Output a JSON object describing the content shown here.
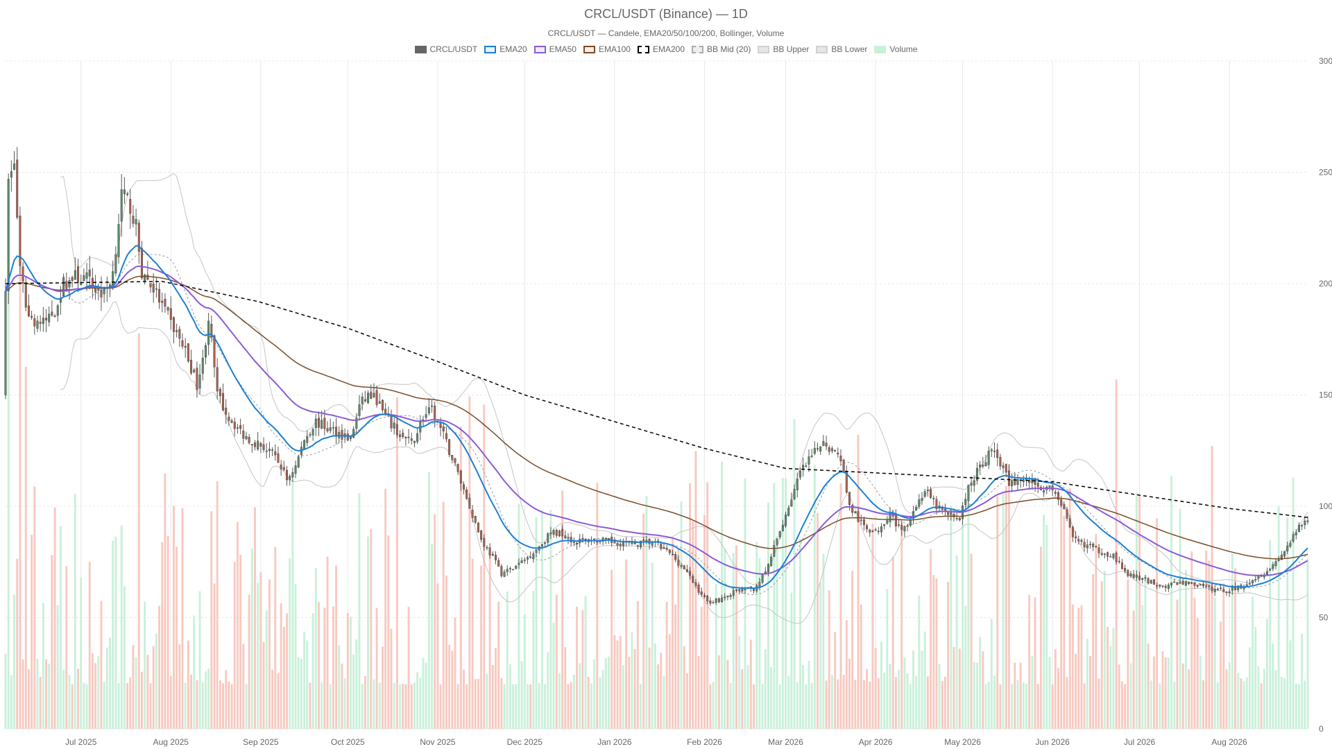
{
  "title": "CRCL/USDT (Binance) — 1D",
  "subtitle": "CRCL/USDT — Candele, EMA20/50/100/200, Bollinger, Volume",
  "legend": [
    {
      "label": "CRCL/USDT",
      "fill": "#666666",
      "stroke": "#666666",
      "dash": false
    },
    {
      "label": "EMA20",
      "fill": "#e6f2fc",
      "stroke": "#1a7fd4",
      "dash": false
    },
    {
      "label": "EMA50",
      "fill": "#f0ebfa",
      "stroke": "#8a5ad8",
      "dash": false
    },
    {
      "label": "EMA100",
      "fill": "#f5ede6",
      "stroke": "#7a4a26",
      "dash": false
    },
    {
      "label": "EMA200",
      "fill": "#ffffff",
      "stroke": "#000000",
      "dash": true
    },
    {
      "label": "BB Mid (20)",
      "fill": "#eeeeee",
      "stroke": "#aaaaaa",
      "dash": true
    },
    {
      "label": "BB Upper",
      "fill": "#e6e6e6",
      "stroke": "#d0d0d0",
      "dash": false
    },
    {
      "label": "BB Lower",
      "fill": "#e6e6e6",
      "stroke": "#d0d0d0",
      "dash": false
    },
    {
      "label": "Volume",
      "fill": "#c9f0da",
      "stroke": "#c9f0da",
      "dash": false
    }
  ],
  "colors": {
    "up": "#5b8c6a",
    "down": "#b0604c",
    "up_volume": "#c9f0da",
    "down_volume": "#f7c9c0",
    "ema20": "#1a7fd4",
    "ema50": "#8a5ad8",
    "ema100": "#7a4a26",
    "ema200": "#000000",
    "bb_mid": "#999999",
    "bb_band": "#c4c4c4",
    "grid": "#e8e8e8"
  },
  "chart_data": {
    "type": "candlestick",
    "symbol": "CRCL/USDT",
    "timeframe": "1D",
    "y_axis": {
      "min": 0,
      "max": 300,
      "ticks": [
        "0",
        "50",
        "100",
        "150",
        "200",
        "250",
        "300"
      ],
      "position": "right"
    },
    "x_axis": {
      "start": "2025-06-05",
      "end": "2026-08-28",
      "ticks": [
        {
          "date": "2025-07-01",
          "label": "Jul 2025"
        },
        {
          "date": "2025-08-01",
          "label": "Aug 2025"
        },
        {
          "date": "2025-09-01",
          "label": "Sep 2025"
        },
        {
          "date": "2025-10-01",
          "label": "Oct 2025"
        },
        {
          "date": "2025-11-01",
          "label": "Nov 2025"
        },
        {
          "date": "2025-12-01",
          "label": "Dec 2025"
        },
        {
          "date": "2026-01-01",
          "label": "Jan 2026"
        },
        {
          "date": "2026-02-01",
          "label": "Feb 2026"
        },
        {
          "date": "2026-03-01",
          "label": "Mar 2026"
        },
        {
          "date": "2026-04-01",
          "label": "Apr 2026"
        },
        {
          "date": "2026-05-01",
          "label": "May 2026"
        },
        {
          "date": "2026-06-01",
          "label": "Jun 2026"
        },
        {
          "date": "2026-07-01",
          "label": "Jul 2026"
        },
        {
          "date": "2026-08-01",
          "label": "Aug 2026"
        }
      ]
    },
    "grid": true,
    "legend_position": "top",
    "close_keypoints": [
      {
        "date": "2025-06-05",
        "close": 200
      },
      {
        "date": "2025-06-06",
        "close": 245
      },
      {
        "date": "2025-06-08",
        "close": 255
      },
      {
        "date": "2025-06-10",
        "close": 205
      },
      {
        "date": "2025-06-13",
        "close": 185
      },
      {
        "date": "2025-06-18",
        "close": 182
      },
      {
        "date": "2025-06-22",
        "close": 188
      },
      {
        "date": "2025-06-25",
        "close": 200
      },
      {
        "date": "2025-06-29",
        "close": 203
      },
      {
        "date": "2025-07-03",
        "close": 202
      },
      {
        "date": "2025-07-06",
        "close": 198
      },
      {
        "date": "2025-07-09",
        "close": 195
      },
      {
        "date": "2025-07-12",
        "close": 205
      },
      {
        "date": "2025-07-15",
        "close": 240
      },
      {
        "date": "2025-07-18",
        "close": 235
      },
      {
        "date": "2025-07-20",
        "close": 225
      },
      {
        "date": "2025-07-22",
        "close": 205
      },
      {
        "date": "2025-07-26",
        "close": 198
      },
      {
        "date": "2025-07-29",
        "close": 190
      },
      {
        "date": "2025-08-02",
        "close": 180
      },
      {
        "date": "2025-08-06",
        "close": 170
      },
      {
        "date": "2025-08-10",
        "close": 155
      },
      {
        "date": "2025-08-12",
        "close": 165
      },
      {
        "date": "2025-08-14",
        "close": 185
      },
      {
        "date": "2025-08-17",
        "close": 150
      },
      {
        "date": "2025-08-21",
        "close": 140
      },
      {
        "date": "2025-08-26",
        "close": 132
      },
      {
        "date": "2025-08-31",
        "close": 128
      },
      {
        "date": "2025-09-04",
        "close": 125
      },
      {
        "date": "2025-09-08",
        "close": 118
      },
      {
        "date": "2025-09-10",
        "close": 112
      },
      {
        "date": "2025-09-13",
        "close": 118
      },
      {
        "date": "2025-09-16",
        "close": 130
      },
      {
        "date": "2025-09-20",
        "close": 138
      },
      {
        "date": "2025-09-24",
        "close": 135
      },
      {
        "date": "2025-09-28",
        "close": 133
      },
      {
        "date": "2025-10-02",
        "close": 130
      },
      {
        "date": "2025-10-05",
        "close": 145
      },
      {
        "date": "2025-10-08",
        "close": 150
      },
      {
        "date": "2025-10-11",
        "close": 148
      },
      {
        "date": "2025-10-14",
        "close": 140
      },
      {
        "date": "2025-10-19",
        "close": 132
      },
      {
        "date": "2025-10-23",
        "close": 128
      },
      {
        "date": "2025-10-27",
        "close": 140
      },
      {
        "date": "2025-10-30",
        "close": 143
      },
      {
        "date": "2025-11-02",
        "close": 135
      },
      {
        "date": "2025-11-05",
        "close": 125
      },
      {
        "date": "2025-11-08",
        "close": 115
      },
      {
        "date": "2025-11-12",
        "close": 100
      },
      {
        "date": "2025-11-16",
        "close": 85
      },
      {
        "date": "2025-11-20",
        "close": 77
      },
      {
        "date": "2025-11-23",
        "close": 70
      },
      {
        "date": "2025-11-27",
        "close": 72
      },
      {
        "date": "2025-12-02",
        "close": 77
      },
      {
        "date": "2025-12-06",
        "close": 82
      },
      {
        "date": "2025-12-10",
        "close": 88
      },
      {
        "date": "2025-12-14",
        "close": 88
      },
      {
        "date": "2025-12-18",
        "close": 84
      },
      {
        "date": "2025-12-24",
        "close": 85
      },
      {
        "date": "2025-12-31",
        "close": 84
      },
      {
        "date": "2026-01-07",
        "close": 83
      },
      {
        "date": "2026-01-14",
        "close": 84
      },
      {
        "date": "2026-01-20",
        "close": 79
      },
      {
        "date": "2026-01-25",
        "close": 72
      },
      {
        "date": "2026-01-29",
        "close": 64
      },
      {
        "date": "2026-02-02",
        "close": 57
      },
      {
        "date": "2026-02-06",
        "close": 58
      },
      {
        "date": "2026-02-12",
        "close": 62
      },
      {
        "date": "2026-02-18",
        "close": 63
      },
      {
        "date": "2026-02-22",
        "close": 70
      },
      {
        "date": "2026-02-26",
        "close": 85
      },
      {
        "date": "2026-03-02",
        "close": 100
      },
      {
        "date": "2026-03-06",
        "close": 115
      },
      {
        "date": "2026-03-10",
        "close": 122
      },
      {
        "date": "2026-03-14",
        "close": 130
      },
      {
        "date": "2026-03-17",
        "close": 125
      },
      {
        "date": "2026-03-20",
        "close": 122
      },
      {
        "date": "2026-03-23",
        "close": 100
      },
      {
        "date": "2026-03-27",
        "close": 92
      },
      {
        "date": "2026-04-01",
        "close": 88
      },
      {
        "date": "2026-04-06",
        "close": 97
      },
      {
        "date": "2026-04-10",
        "close": 88
      },
      {
        "date": "2026-04-14",
        "close": 98
      },
      {
        "date": "2026-04-18",
        "close": 107
      },
      {
        "date": "2026-04-22",
        "close": 100
      },
      {
        "date": "2026-04-26",
        "close": 96
      },
      {
        "date": "2026-04-30",
        "close": 95
      },
      {
        "date": "2026-05-03",
        "close": 108
      },
      {
        "date": "2026-05-07",
        "close": 118
      },
      {
        "date": "2026-05-11",
        "close": 125
      },
      {
        "date": "2026-05-14",
        "close": 120
      },
      {
        "date": "2026-05-17",
        "close": 110
      },
      {
        "date": "2026-05-21",
        "close": 112
      },
      {
        "date": "2026-05-25",
        "close": 111
      },
      {
        "date": "2026-05-29",
        "close": 108
      },
      {
        "date": "2026-06-02",
        "close": 107
      },
      {
        "date": "2026-06-05",
        "close": 98
      },
      {
        "date": "2026-06-08",
        "close": 85
      },
      {
        "date": "2026-06-12",
        "close": 83
      },
      {
        "date": "2026-06-17",
        "close": 80
      },
      {
        "date": "2026-06-22",
        "close": 78
      },
      {
        "date": "2026-06-26",
        "close": 70
      },
      {
        "date": "2026-06-30",
        "close": 68
      },
      {
        "date": "2026-07-05",
        "close": 66
      },
      {
        "date": "2026-07-10",
        "close": 64
      },
      {
        "date": "2026-07-15",
        "close": 66
      },
      {
        "date": "2026-07-20",
        "close": 65
      },
      {
        "date": "2026-07-25",
        "close": 63
      },
      {
        "date": "2026-07-31",
        "close": 62
      },
      {
        "date": "2026-08-05",
        "close": 64
      },
      {
        "date": "2026-08-10",
        "close": 68
      },
      {
        "date": "2026-08-15",
        "close": 72
      },
      {
        "date": "2026-08-20",
        "close": 80
      },
      {
        "date": "2026-08-25",
        "close": 90
      },
      {
        "date": "2026-08-28",
        "close": 95
      }
    ],
    "ema200_keypoints": [
      {
        "date": "2025-06-05",
        "value": 200
      },
      {
        "date": "2025-07-29",
        "value": 201
      },
      {
        "date": "2025-08-31",
        "value": 192
      },
      {
        "date": "2025-10-01",
        "value": 180
      },
      {
        "date": "2025-11-01",
        "value": 165
      },
      {
        "date": "2025-12-01",
        "value": 150
      },
      {
        "date": "2026-01-01",
        "value": 138
      },
      {
        "date": "2026-02-01",
        "value": 126
      },
      {
        "date": "2026-03-01",
        "value": 117
      },
      {
        "date": "2026-04-01",
        "value": 115
      },
      {
        "date": "2026-05-01",
        "value": 113
      },
      {
        "date": "2026-06-01",
        "value": 111
      },
      {
        "date": "2026-07-01",
        "value": 105
      },
      {
        "date": "2026-08-01",
        "value": 99
      },
      {
        "date": "2026-08-28",
        "value": 95
      }
    ],
    "volume_max": 300
  }
}
